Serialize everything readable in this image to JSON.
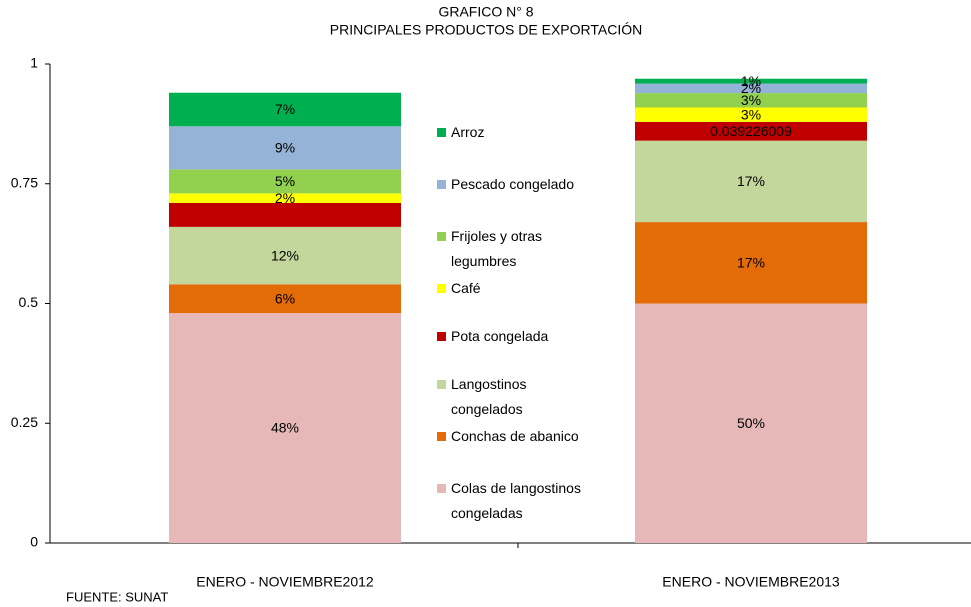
{
  "chart_data": {
    "type": "stacked_bar",
    "title": "GRAFICO N° 8",
    "subtitle": "PRINCIPALES PRODUCTOS DE EXPORTACIÓN",
    "note": "FUENTE: SUNAT",
    "categories": [
      "ENERO - NOVIEMBRE2012",
      "ENERO - NOVIEMBRE2013"
    ],
    "ylim": [
      0,
      1
    ],
    "yticks": [
      0,
      0.25,
      0.5,
      0.75,
      1
    ],
    "series": [
      {
        "name": "Colas de langostinos congeladas",
        "color": "#e6b9b8",
        "values": [
          0.48,
          0.5
        ],
        "value_labels": [
          "48%",
          "50%"
        ]
      },
      {
        "name": "Conchas de abanico",
        "color": "#e36c09",
        "values": [
          0.06,
          0.17
        ],
        "value_labels": [
          "6%",
          "17%"
        ]
      },
      {
        "name": "Langostinos congelados",
        "color": "#c3d69b",
        "values": [
          0.12,
          0.17
        ],
        "value_labels": [
          "12%",
          "17%"
        ]
      },
      {
        "name": "Pota congelada",
        "color": "#c00000",
        "values": [
          0.05,
          0.039226009
        ],
        "value_labels": [
          null,
          "0.039226009"
        ]
      },
      {
        "name": "Café",
        "color": "#ffff00",
        "values": [
          0.02,
          0.03
        ],
        "value_labels": [
          "2%",
          "3%"
        ]
      },
      {
        "name": "Frijoles y otras legumbres",
        "color": "#92d050",
        "values": [
          0.05,
          0.03
        ],
        "value_labels": [
          "5%",
          "3%"
        ]
      },
      {
        "name": "Pescado congelado",
        "color": "#95b3d7",
        "values": [
          0.09,
          0.02
        ],
        "value_labels": [
          "9%",
          "2%"
        ]
      },
      {
        "name": "Arroz",
        "color": "#00b050",
        "values": [
          0.07,
          0.01
        ],
        "value_labels": [
          "7%",
          "1%"
        ]
      }
    ]
  }
}
